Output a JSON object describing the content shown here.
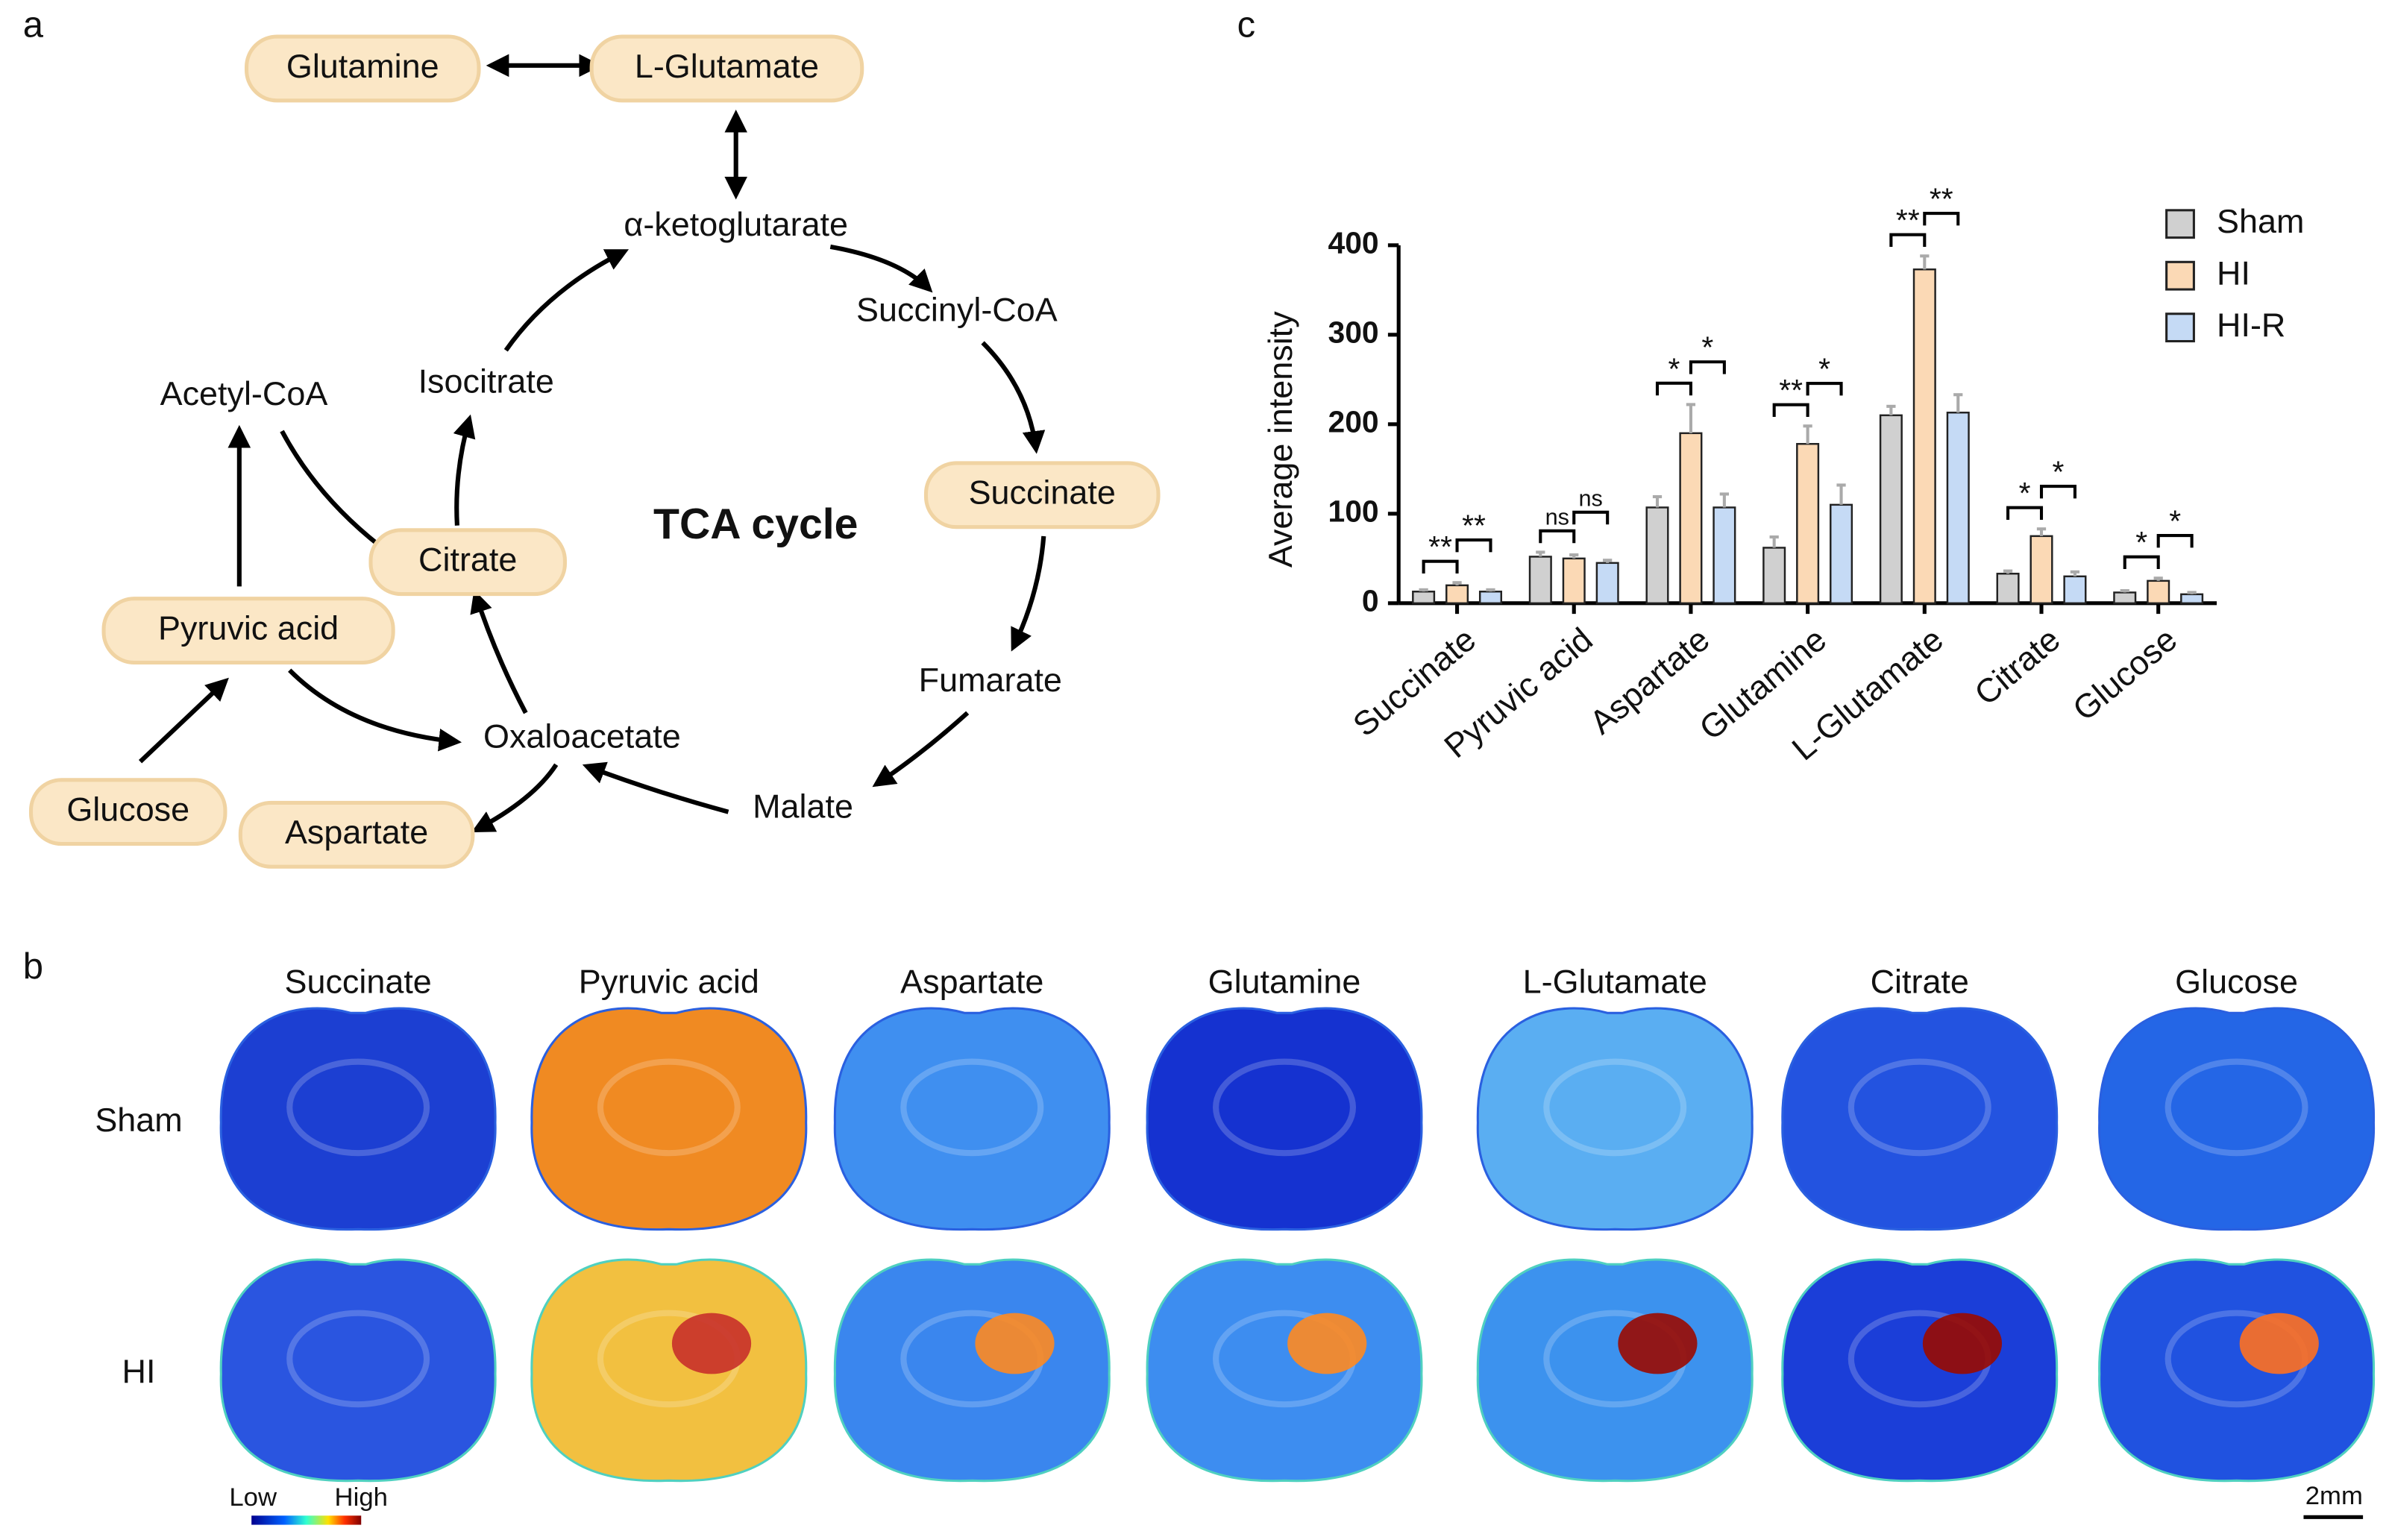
{
  "panel_labels": [
    "a",
    "b",
    "c"
  ],
  "diagram": {
    "center": "TCA cycle",
    "nodes": [
      {
        "label": "Glutamine",
        "highlight": true
      },
      {
        "label": "L-Glutamate",
        "highlight": true
      },
      {
        "label": "α-ketoglutarate",
        "highlight": false
      },
      {
        "label": "Succinyl-CoA",
        "highlight": false
      },
      {
        "label": "Succinate",
        "highlight": true
      },
      {
        "label": "Fumarate",
        "highlight": false
      },
      {
        "label": "Malate",
        "highlight": false
      },
      {
        "label": "Oxaloacetate",
        "highlight": false
      },
      {
        "label": "Citrate",
        "highlight": true
      },
      {
        "label": "Isocitrate",
        "highlight": false
      },
      {
        "label": "Acetyl-CoA",
        "highlight": false
      },
      {
        "label": "Pyruvic acid",
        "highlight": true
      },
      {
        "label": "Glucose",
        "highlight": true
      },
      {
        "label": "Aspartate",
        "highlight": true
      }
    ]
  },
  "imaging": {
    "columns": [
      "Succinate",
      "Pyruvic acid",
      "Aspartate",
      "Glutamine",
      "L-Glutamate",
      "Citrate",
      "Glucose"
    ],
    "rows": [
      "Sham",
      "HI"
    ],
    "colorbar": {
      "low": "Low",
      "high": "High"
    },
    "scale_bar": "2mm"
  },
  "chart_data": {
    "type": "bar",
    "ylabel": "Average intensity",
    "categories": [
      "Succinate",
      "Pyruvic acid",
      "Aspartate",
      "Glutamine",
      "L-Glutamate",
      "Citrate",
      "Glucose"
    ],
    "series": [
      {
        "name": "Sham",
        "color": "#d0d0d0",
        "values": [
          13,
          52,
          107,
          62,
          210,
          33,
          12
        ],
        "errors": [
          2,
          5,
          12,
          12,
          10,
          3,
          2
        ]
      },
      {
        "name": "HI",
        "color": "#fbd9b5",
        "values": [
          20,
          50,
          190,
          178,
          373,
          75,
          25
        ],
        "errors": [
          3,
          4,
          32,
          20,
          15,
          8,
          3
        ]
      },
      {
        "name": "HI-R",
        "color": "#c5daf5",
        "values": [
          13,
          45,
          107,
          110,
          213,
          30,
          10
        ],
        "errors": [
          2,
          3,
          15,
          22,
          20,
          5,
          2
        ]
      }
    ],
    "annotations": [
      [
        "**",
        "**"
      ],
      [
        "ns",
        "ns"
      ],
      [
        "*",
        "*"
      ],
      [
        "**",
        "*"
      ],
      [
        "**",
        "**"
      ],
      [
        "*",
        "*"
      ],
      [
        "*",
        "*"
      ]
    ],
    "ylim": [
      0,
      400
    ],
    "yticks": [
      0,
      100,
      200,
      300,
      400
    ],
    "legend": "top-right"
  }
}
